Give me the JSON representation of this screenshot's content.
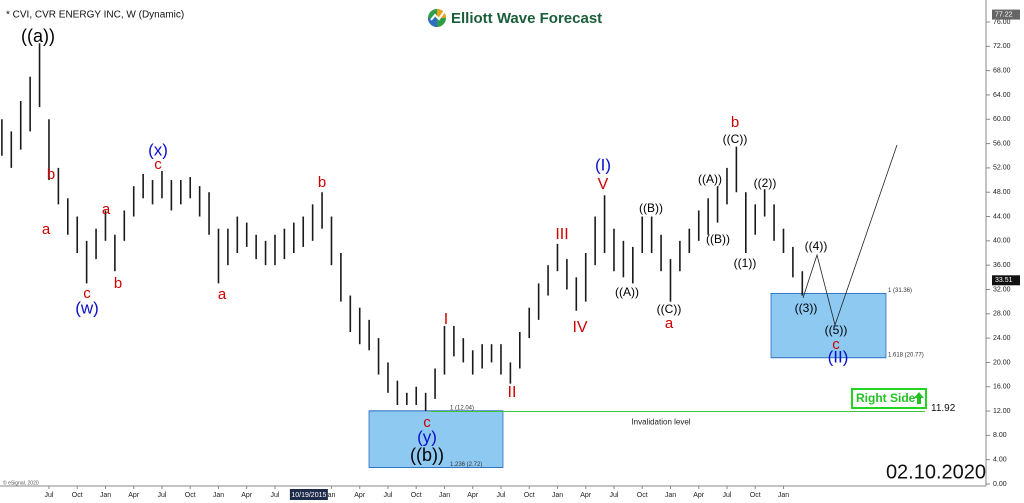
{
  "header": {
    "symbol_title": "* CVI, CVR ENERGY INC, W (Dynamic)",
    "logo_text": "Elliott Wave Forecast",
    "date": "02.10.2020",
    "copyright": "© eSignal, 2020",
    "button": "Right Side"
  },
  "chart_data": {
    "type": "range",
    "color": "#1a1a1a",
    "x": [
      -5,
      -4,
      -3,
      -2,
      -1,
      0,
      1,
      2,
      3,
      4,
      5,
      6,
      7,
      8,
      9,
      10,
      11,
      12,
      13,
      14,
      15,
      16,
      17,
      18,
      19,
      20,
      21,
      22,
      23,
      24,
      25,
      26,
      27,
      28,
      29,
      30,
      31,
      32,
      33,
      34,
      35,
      36,
      37,
      38,
      39,
      40,
      41,
      42,
      43,
      44,
      45,
      46,
      47,
      48,
      49,
      50,
      51,
      52,
      53,
      54,
      55,
      56,
      57,
      58,
      59,
      60,
      61,
      62,
      63,
      64,
      65,
      66,
      67,
      68,
      69,
      70,
      71,
      72,
      73,
      74,
      75,
      76,
      77,
      78,
      79,
      80
    ],
    "high": [
      60,
      58,
      63,
      67,
      72.5,
      60,
      52,
      47,
      44,
      40,
      42,
      45,
      41,
      45,
      49,
      51,
      50,
      51.5,
      50,
      50,
      50.5,
      49,
      48,
      42,
      42,
      44,
      43,
      41,
      40,
      41,
      42,
      43,
      44,
      46,
      48,
      44,
      38,
      31,
      29,
      27,
      24,
      20,
      17,
      15,
      16,
      15,
      19,
      26,
      26,
      24,
      22,
      23,
      23,
      23,
      20,
      25,
      29,
      33,
      36,
      39.5,
      37,
      34,
      38,
      44,
      47.5,
      42,
      40,
      39,
      44,
      44,
      41,
      37,
      40,
      42,
      45,
      47,
      49,
      52,
      55.5,
      48,
      46,
      48.5,
      46,
      42,
      39,
      35
    ],
    "low": [
      54,
      52,
      55,
      58,
      62,
      50,
      46,
      41,
      38,
      33,
      37,
      40,
      35,
      40,
      44,
      47,
      46,
      47,
      45,
      46,
      47,
      44,
      41,
      33,
      36,
      38,
      39,
      37,
      36,
      36,
      37,
      38,
      39,
      40,
      42,
      36,
      30,
      25,
      23,
      22,
      18,
      15,
      13,
      13,
      13,
      12,
      14,
      18,
      21,
      20,
      18,
      19,
      20,
      18,
      16.5,
      19,
      24,
      27,
      31,
      35,
      32,
      28.5,
      30,
      36,
      38,
      35,
      34,
      33,
      38,
      38,
      35,
      30,
      35,
      38,
      40,
      41,
      43,
      46,
      48,
      38,
      41,
      44,
      40,
      38,
      34,
      31
    ],
    "xlim": [
      -5.2,
      99.4
    ],
    "xticks": [
      {
        "value": 0,
        "label": "Jul"
      },
      {
        "value": 3,
        "label": "Oct"
      },
      {
        "value": 6,
        "label": "Jan"
      },
      {
        "value": 9,
        "label": "Apr"
      },
      {
        "value": 12,
        "label": "Jul"
      },
      {
        "value": 15,
        "label": "Oct"
      },
      {
        "value": 18,
        "label": "Jan"
      },
      {
        "value": 21,
        "label": "Apr"
      },
      {
        "value": 24,
        "label": "Jul"
      },
      {
        "value": 30,
        "label": "an"
      },
      {
        "value": 33,
        "label": "Apr"
      },
      {
        "value": 36,
        "label": "Jul"
      },
      {
        "value": 39,
        "label": "Oct"
      },
      {
        "value": 42,
        "label": "Jan"
      },
      {
        "value": 45,
        "label": "Apr"
      },
      {
        "value": 48,
        "label": "Jul"
      },
      {
        "value": 51,
        "label": "Oct"
      },
      {
        "value": 54,
        "label": "Jan"
      },
      {
        "value": 57,
        "label": "Apr"
      },
      {
        "value": 60,
        "label": "Jul"
      },
      {
        "value": 63,
        "label": "Oct"
      },
      {
        "value": 66,
        "label": "Jan"
      },
      {
        "value": 69,
        "label": "Apr"
      },
      {
        "value": 72,
        "label": "Jul"
      },
      {
        "value": 75,
        "label": "Oct"
      },
      {
        "value": 78,
        "label": "Jan"
      }
    ],
    "cursor_date": "10/19/2015",
    "ylim": [
      0,
      76
    ],
    "yticks": [
      {
        "value": 0,
        "label": "0.00"
      },
      {
        "value": 4,
        "label": "4.00"
      },
      {
        "value": 8,
        "label": "8.00"
      },
      {
        "value": 12,
        "label": "12.00"
      },
      {
        "value": 16,
        "label": "16.00"
      },
      {
        "value": 20,
        "label": "20.00"
      },
      {
        "value": 24,
        "label": "24.00"
      },
      {
        "value": 28,
        "label": "28.00"
      },
      {
        "value": 32,
        "label": "32.00"
      },
      {
        "value": 36,
        "label": "36.00"
      },
      {
        "value": 40,
        "label": "40.00"
      },
      {
        "value": 44,
        "label": "44.00"
      },
      {
        "value": 48,
        "label": "48.00"
      },
      {
        "value": 52,
        "label": "52.00"
      },
      {
        "value": 56,
        "label": "56.00"
      },
      {
        "value": 60,
        "label": "60.00"
      },
      {
        "value": 64,
        "label": "64.00"
      },
      {
        "value": 68,
        "label": "68.00"
      },
      {
        "value": 72,
        "label": "72.00"
      },
      {
        "value": 76,
        "label": "76.00"
      }
    ],
    "last_price": 33.51,
    "top_marker": 77.22,
    "fib_zones": [
      {
        "color": "#8ec9f2",
        "levels": [
          {
            "value": 12.04,
            "label": "1 (12.04)"
          },
          {
            "value": 2.72,
            "label": "1.236 (2.72)"
          }
        ]
      },
      {
        "color": "#8ec9f2",
        "levels": [
          {
            "value": 31.36,
            "label": "1 (31.36)"
          },
          {
            "value": 20.77,
            "label": "1.618 (20.77)"
          }
        ]
      }
    ],
    "invalidation": {
      "value": 11.92,
      "label": "11.92",
      "text": "Invalidation level",
      "color": "#3cc43c"
    },
    "wave_labels": [
      {
        "text": "((a))",
        "color": "#000000"
      },
      {
        "text": "b",
        "color": "#d00000"
      },
      {
        "text": "a",
        "color": "#d00000"
      },
      {
        "text": "c",
        "color": "#d00000"
      },
      {
        "text": "(w)",
        "color": "#0a10c8"
      },
      {
        "text": "a",
        "color": "#d00000"
      },
      {
        "text": "b",
        "color": "#d00000"
      },
      {
        "text": "(x)",
        "color": "#0a10c8"
      },
      {
        "text": "c",
        "color": "#d00000"
      },
      {
        "text": "a",
        "color": "#d00000"
      },
      {
        "text": "b",
        "color": "#d00000"
      },
      {
        "text": "I",
        "color": "#d00000"
      },
      {
        "text": "c",
        "color": "#d00000"
      },
      {
        "text": "(y)",
        "color": "#0a10c8"
      },
      {
        "text": "((b))",
        "color": "#000000"
      },
      {
        "text": "II",
        "color": "#d00000"
      },
      {
        "text": "III",
        "color": "#d00000"
      },
      {
        "text": "IV",
        "color": "#d00000"
      },
      {
        "text": "V",
        "color": "#d00000"
      },
      {
        "text": "(I)",
        "color": "#0a10c8"
      },
      {
        "text": "((A))",
        "color": "#000000"
      },
      {
        "text": "((B))",
        "color": "#000000"
      },
      {
        "text": "((C))",
        "color": "#000000"
      },
      {
        "text": "a",
        "color": "#d00000"
      },
      {
        "text": "((A))",
        "color": "#000000"
      },
      {
        "text": "((B))",
        "color": "#000000"
      },
      {
        "text": "b",
        "color": "#d00000"
      },
      {
        "text": "((C))",
        "color": "#000000"
      },
      {
        "text": "((1))",
        "color": "#000000"
      },
      {
        "text": "((2))",
        "color": "#000000"
      },
      {
        "text": "((3))",
        "color": "#000000"
      },
      {
        "text": "((4))",
        "color": "#000000"
      },
      {
        "text": "((5))",
        "color": "#000000"
      },
      {
        "text": "c",
        "color": "#d00000"
      },
      {
        "text": "(II)",
        "color": "#0a10c8"
      }
    ]
  }
}
